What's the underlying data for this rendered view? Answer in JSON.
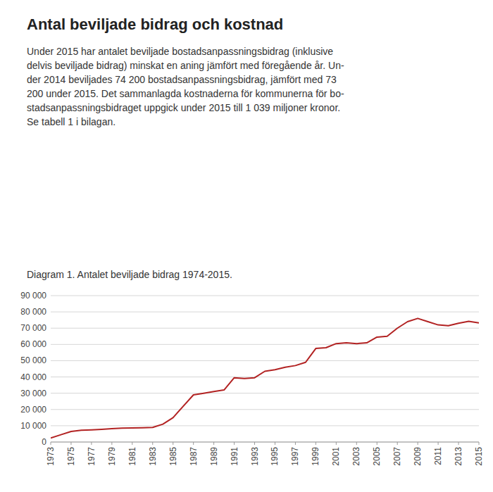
{
  "chart_data": {
    "type": "line",
    "title": "Antal beviljade bidrag och kostnad",
    "subtitle": "Under 2015 har antalet beviljade bostadsanpassningsbidrag (inklusive\ndelvis beviljade bidrag) minskat en aning jämfört med föregående år. Un-\nder 2014 beviljades 74 200 bostadsanpassningsbidrag, jämfört med 73\n200 under 2015. Det sammanlagda kostnaderna för kommunerna för bo-\nstadsanpassningsbidraget uppgick under 2015 till 1 039 miljoner kronor.\nSe tabell 1 i bilagan.",
    "annotations": [
      "Diagram 1. Antalet beviljade bidrag 1974-2015."
    ],
    "x": [
      1973,
      1974,
      1975,
      1976,
      1977,
      1978,
      1979,
      1980,
      1981,
      1982,
      1983,
      1984,
      1985,
      1986,
      1987,
      1988,
      1989,
      1990,
      1991,
      1992,
      1993,
      1994,
      1995,
      1996,
      1997,
      1998,
      1999,
      2000,
      2001,
      2002,
      2003,
      2004,
      2005,
      2006,
      2007,
      2008,
      2009,
      2010,
      2011,
      2012,
      2013,
      2014,
      2015
    ],
    "values": [
      2500,
      4500,
      6500,
      7200,
      7500,
      7800,
      8200,
      8500,
      8700,
      8800,
      9000,
      11000,
      15000,
      22000,
      29000,
      30000,
      31000,
      32000,
      39500,
      39000,
      39500,
      43500,
      44500,
      46000,
      47000,
      49000,
      57500,
      58000,
      60500,
      61000,
      60500,
      61000,
      64500,
      65000,
      70000,
      74000,
      76000,
      74000,
      72000,
      71500,
      73000,
      74200,
      73200
    ],
    "color": "#B22222",
    "xlim": [
      1973,
      2015
    ],
    "xticks": [
      1973,
      1975,
      1977,
      1979,
      1981,
      1983,
      1985,
      1987,
      1989,
      1991,
      1993,
      1995,
      1997,
      1999,
      2001,
      2003,
      2005,
      2007,
      2009,
      2011,
      2013,
      2015
    ],
    "ylim": [
      0,
      90000
    ],
    "yticks": [
      0,
      {
        "value": 10000,
        "label": "10 000"
      },
      {
        "value": 20000,
        "label": "20 000"
      },
      {
        "value": 30000,
        "label": "30 000"
      },
      {
        "value": 40000,
        "label": "40 000"
      },
      {
        "value": 50000,
        "label": "50 000"
      },
      {
        "value": 60000,
        "label": "60 000"
      },
      {
        "value": 70000,
        "label": "70 000"
      },
      {
        "value": 80000,
        "label": "80 000"
      },
      {
        "value": 90000,
        "label": "90 000"
      }
    ],
    "grid": true
  }
}
